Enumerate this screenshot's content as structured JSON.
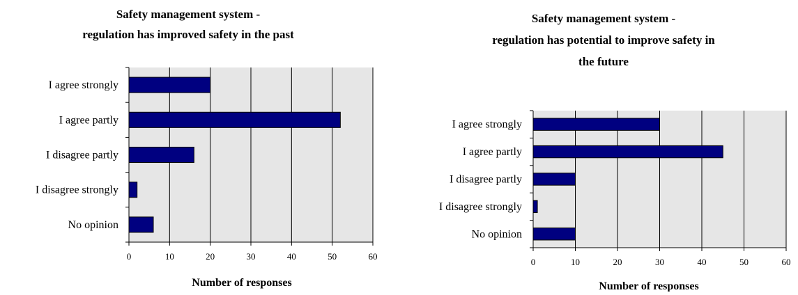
{
  "chart_data": [
    {
      "type": "bar",
      "orientation": "horizontal",
      "title_lines": [
        "Safety management system  -",
        "regulation has improved safety in the past"
      ],
      "xlabel": "Number of responses",
      "ylabel": "",
      "categories": [
        "I agree strongly",
        "I agree partly",
        "I disagree partly",
        "I disagree strongly",
        "No opinion"
      ],
      "values": [
        20,
        52,
        16,
        2,
        6
      ],
      "xlim": [
        0,
        60
      ],
      "xticks": [
        "0",
        "10",
        "20",
        "30",
        "40",
        "50",
        "60"
      ],
      "grid": true,
      "legend": "none",
      "colors": {
        "bar": "#000080",
        "plot_bg": "#e6e6e6",
        "grid": "#000000"
      }
    },
    {
      "type": "bar",
      "orientation": "horizontal",
      "title_lines": [
        "Safety management system -",
        "regulation has potential to improve safety in",
        "the future"
      ],
      "xlabel": "Number of responses",
      "ylabel": "",
      "categories": [
        "I agree strongly",
        "I agree partly",
        "I disagree partly",
        "I disagree strongly",
        "No opinion"
      ],
      "values": [
        30,
        45,
        10,
        1,
        10
      ],
      "xlim": [
        0,
        60
      ],
      "xticks": [
        "0",
        "10",
        "20",
        "30",
        "40",
        "50",
        "60"
      ],
      "grid": true,
      "legend": "none",
      "colors": {
        "bar": "#000080",
        "plot_bg": "#e6e6e6",
        "grid": "#000000"
      }
    }
  ]
}
